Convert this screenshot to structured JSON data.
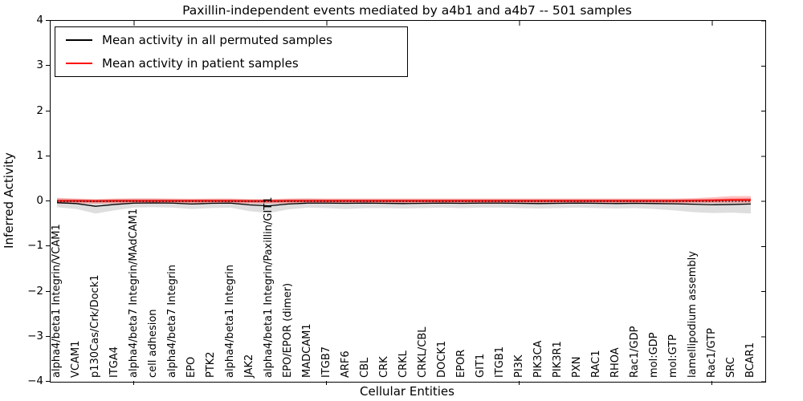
{
  "legend": {
    "items": [
      {
        "label": "Mean activity in all permuted samples",
        "color": "#000000"
      },
      {
        "label": "Mean activity in patient samples",
        "color": "#ff0000"
      }
    ]
  },
  "chart_data": {
    "type": "line",
    "title": "Paxillin-independent events mediated by a4b1 and a4b7 -- 501 samples",
    "xlabel": "Cellular Entities",
    "ylabel": "Inferred Activity",
    "ylim": [
      -4,
      4
    ],
    "yticks": [
      4,
      3,
      2,
      1,
      0,
      -1,
      -2,
      -3,
      -4
    ],
    "xtick_categories": [
      4,
      14,
      24,
      34
    ],
    "grid": false,
    "legend_position": "upper left",
    "categories": [
      "alpha4/beta1 Integrin/VCAM1",
      "VCAM1",
      "p130Cas/Crk/Dock1",
      "ITGA4",
      "alpha4/beta7 Integrin/MAdCAM1",
      "cell adhesion",
      "alpha4/beta7 Integrin",
      "EPO",
      "PTK2",
      "alpha4/beta1 Integrin",
      "JAK2",
      "alpha4/beta1 Integrin/Paxillin/GIT1",
      "EPO/EPOR (dimer)",
      "MADCAM1",
      "ITGB7",
      "ARF6",
      "CBL",
      "CRK",
      "CRKL",
      "CRKL/CBL",
      "DOCK1",
      "EPOR",
      "GIT1",
      "ITGB1",
      "PI3K",
      "PIK3CA",
      "PIK3R1",
      "PXN",
      "RAC1",
      "RHOA",
      "Rac1/GDP",
      "mol:GDP",
      "mol:GTP",
      "lamellipodium assembly",
      "Rac1/GTP",
      "SRC",
      "BCAR1"
    ],
    "series": [
      {
        "name": "Mean activity in all permuted samples",
        "color": "#000000",
        "line_width": 1.3,
        "values": [
          -0.03,
          -0.05,
          -0.11,
          -0.07,
          -0.04,
          -0.035,
          -0.04,
          -0.06,
          -0.045,
          -0.04,
          -0.08,
          -0.1,
          -0.06,
          -0.04,
          -0.04,
          -0.045,
          -0.04,
          -0.045,
          -0.05,
          -0.045,
          -0.04,
          -0.045,
          -0.04,
          -0.04,
          -0.045,
          -0.05,
          -0.045,
          -0.04,
          -0.045,
          -0.05,
          -0.045,
          -0.05,
          -0.055,
          -0.065,
          -0.075,
          -0.07,
          -0.06
        ],
        "band": {
          "fill": "rgba(0,0,0,0.13)",
          "upper": [
            0.06,
            0.05,
            0.04,
            0.05,
            0.055,
            0.055,
            0.05,
            0.045,
            0.05,
            0.05,
            0.045,
            0.04,
            0.05,
            0.055,
            0.05,
            0.05,
            0.05,
            0.05,
            0.05,
            0.05,
            0.05,
            0.05,
            0.05,
            0.05,
            0.05,
            0.05,
            0.05,
            0.05,
            0.05,
            0.05,
            0.05,
            0.05,
            0.05,
            0.05,
            0.055,
            0.06,
            0.07
          ],
          "lower": [
            -0.13,
            -0.17,
            -0.27,
            -0.2,
            -0.14,
            -0.13,
            -0.14,
            -0.17,
            -0.15,
            -0.14,
            -0.22,
            -0.26,
            -0.18,
            -0.14,
            -0.15,
            -0.17,
            -0.15,
            -0.15,
            -0.16,
            -0.15,
            -0.14,
            -0.15,
            -0.14,
            -0.14,
            -0.15,
            -0.16,
            -0.15,
            -0.14,
            -0.15,
            -0.16,
            -0.15,
            -0.17,
            -0.2,
            -0.24,
            -0.26,
            -0.25,
            -0.27
          ]
        }
      },
      {
        "name": "Mean activity in patient samples",
        "color": "#ff0000",
        "line_width": 1.3,
        "values": [
          0.01,
          0.01,
          0.005,
          0.01,
          0.01,
          0.01,
          0.01,
          0.01,
          0.01,
          0.01,
          0.005,
          0.005,
          0.01,
          0.01,
          0.01,
          0.01,
          0.01,
          0.01,
          0.01,
          0.01,
          0.01,
          0.01,
          0.01,
          0.01,
          0.01,
          0.01,
          0.01,
          0.01,
          0.01,
          0.01,
          0.01,
          0.01,
          0.01,
          0.015,
          0.02,
          0.03,
          0.03
        ],
        "band": {
          "fill": "rgba(255,0,0,0.25)",
          "upper": [
            0.075,
            0.06,
            0.05,
            0.06,
            0.065,
            0.065,
            0.06,
            0.055,
            0.06,
            0.06,
            0.05,
            0.05,
            0.06,
            0.065,
            0.06,
            0.06,
            0.06,
            0.06,
            0.06,
            0.06,
            0.06,
            0.06,
            0.06,
            0.06,
            0.06,
            0.06,
            0.06,
            0.06,
            0.06,
            0.06,
            0.06,
            0.06,
            0.06,
            0.07,
            0.09,
            0.115,
            0.115
          ],
          "lower": [
            -0.055,
            -0.05,
            -0.05,
            -0.05,
            -0.05,
            -0.05,
            -0.05,
            -0.05,
            -0.05,
            -0.05,
            -0.05,
            -0.05,
            -0.05,
            -0.05,
            -0.05,
            -0.05,
            -0.05,
            -0.05,
            -0.05,
            -0.05,
            -0.05,
            -0.05,
            -0.05,
            -0.05,
            -0.05,
            -0.05,
            -0.05,
            -0.05,
            -0.05,
            -0.05,
            -0.05,
            -0.05,
            -0.05,
            -0.045,
            -0.04,
            -0.04,
            -0.04
          ]
        },
        "sem_band": {
          "half_width": 0.03,
          "fill": "rgba(255,0,0,0.4)"
        }
      }
    ],
    "reference_line": {
      "y": 0,
      "color": "#000000",
      "style": "dotted"
    }
  }
}
